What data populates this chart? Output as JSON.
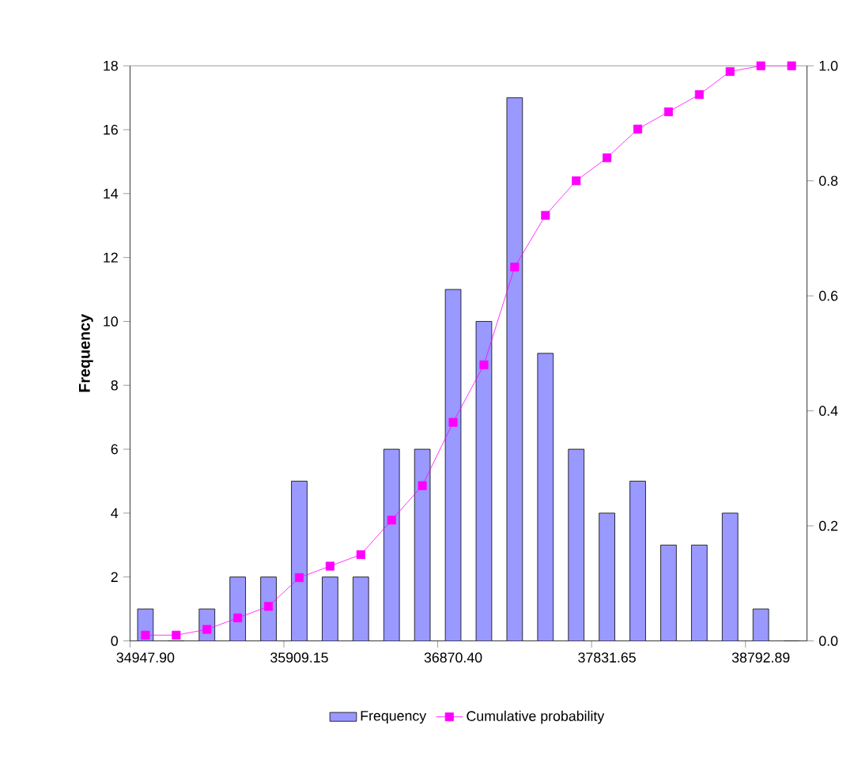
{
  "chart_data": {
    "type": "bar",
    "categories": [
      "34947.90",
      null,
      null,
      null,
      null,
      "35909.15",
      null,
      null,
      null,
      null,
      "36870.40",
      null,
      null,
      null,
      null,
      "37831.65",
      null,
      null,
      null,
      null,
      "38792.89",
      null
    ],
    "ylabel": "Frequency",
    "ylim": [
      0,
      18
    ],
    "yticks": [
      0,
      2,
      4,
      6,
      8,
      10,
      12,
      14,
      16,
      18
    ],
    "y2lim": [
      0,
      1
    ],
    "y2ticks": [
      {
        "value": 0,
        "label": "0.0"
      },
      {
        "value": 0.2,
        "label": "0.2"
      },
      {
        "value": 0.4,
        "label": "0.4"
      },
      {
        "value": 0.6,
        "label": "0.6"
      },
      {
        "value": 0.8,
        "label": "0.8"
      },
      {
        "value": 1,
        "label": "1.0"
      }
    ],
    "legend": "bottom",
    "grid": false,
    "marker": "square",
    "series": [
      {
        "name": "Frequency",
        "color": "#9999ff",
        "values": [
          1,
          0,
          1,
          2,
          2,
          5,
          2,
          2,
          6,
          6,
          11,
          10,
          17,
          9,
          6,
          4,
          5,
          3,
          3,
          4,
          1,
          0
        ]
      },
      {
        "name": "Cumulative probability",
        "type": "line",
        "axis": "y2",
        "color": "#ff00ff",
        "values": [
          0.01,
          0.01,
          0.02,
          0.04,
          0.06,
          0.11,
          0.13,
          0.15,
          0.21,
          0.27,
          0.38,
          0.48,
          0.65,
          0.74,
          0.8,
          0.84,
          0.89,
          0.92,
          0.95,
          0.99,
          1.0,
          1.0
        ]
      }
    ]
  }
}
